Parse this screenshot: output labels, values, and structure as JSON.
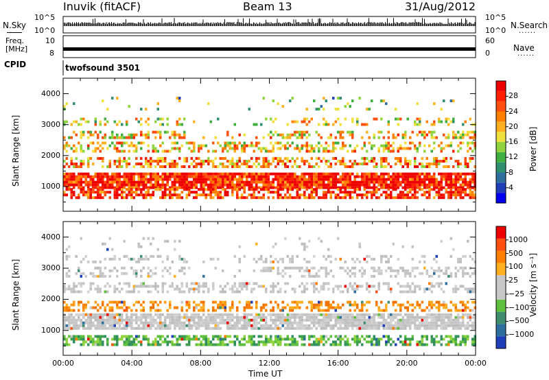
{
  "header": {
    "station": "Inuvik (fitACF)",
    "beam": "Beam 13",
    "date": "31/Aug/2012"
  },
  "top_panels": {
    "nsky_label": "N.Sky",
    "nsky_ticks": [
      "10^5",
      "10^0"
    ],
    "nsearch_label": "N.Search",
    "nsearch_ticks": [
      "10^5",
      "10^0"
    ],
    "freq_label_line1": "Freq.",
    "freq_label_line2": "[MHz]",
    "freq_ticks": [
      "10",
      "8"
    ],
    "nave_label": "Nave",
    "nave_ticks": [
      "60",
      "0"
    ],
    "cpid_label": "CPID",
    "cpid_value": "twofsound 3501",
    "dots": "......"
  },
  "chart_data": [
    {
      "type": "heatmap",
      "quantity": "Power",
      "ylabel": "Slant Range [km]",
      "xlabel": "Time UT",
      "x_ticks": [
        "00:00",
        "04:00",
        "08:00",
        "12:00",
        "16:00",
        "20:00",
        "00:00"
      ],
      "x_range_hours": [
        0,
        24
      ],
      "y_ticks": [
        1000,
        2000,
        3000,
        4000
      ],
      "ylim": [
        200,
        4500
      ],
      "colorbar": {
        "label": "Power [dB]",
        "ticks": [
          "28",
          "24",
          "20",
          "16",
          "12",
          "8",
          "4"
        ],
        "range": [
          0,
          32
        ],
        "colors": [
          "#0000ee",
          "#1f3fb8",
          "#2f6f9f",
          "#2f8f6f",
          "#3faf3f",
          "#8fd43f",
          "#f0e03f",
          "#ffb020",
          "#ff8000",
          "#ff5010",
          "#ff2000",
          "#ee0000"
        ]
      },
      "bands": [
        {
          "center_km": 1200,
          "width_km": 500,
          "level": 0.9,
          "density": 0.9
        },
        {
          "center_km": 800,
          "width_km": 300,
          "level": 0.85,
          "density": 0.6
        },
        {
          "center_km": 1800,
          "width_km": 300,
          "level": 0.7,
          "density": 0.5
        },
        {
          "center_km": 2300,
          "width_km": 300,
          "level": 0.6,
          "density": 0.4
        },
        {
          "center_km": 2700,
          "width_km": 200,
          "level": 0.6,
          "density": 0.35
        },
        {
          "center_km": 3100,
          "width_km": 250,
          "level": 0.55,
          "density": 0.25
        },
        {
          "center_km": 3700,
          "width_km": 400,
          "level": 0.4,
          "density": 0.08
        }
      ]
    },
    {
      "type": "heatmap",
      "quantity": "Velocity",
      "ylabel": "Slant Range [km]",
      "xlabel": "Time UT",
      "x_ticks": [
        "00:00",
        "04:00",
        "08:00",
        "12:00",
        "16:00",
        "20:00",
        "00:00"
      ],
      "x_range_hours": [
        0,
        24
      ],
      "y_ticks": [
        1000,
        2000,
        3000,
        4000
      ],
      "ylim": [
        200,
        4500
      ],
      "colorbar": {
        "label": "Velocity [m s⁻¹]",
        "ticks": [
          "1000",
          "500",
          "100",
          "25",
          "−25",
          "−100",
          "−500",
          "−1000"
        ],
        "colors": [
          "#1f3fb8",
          "#2f6f9f",
          "#3f8f6f",
          "#5fbf3f",
          "#c8c8c8",
          "#c8c8c8",
          "#ffb020",
          "#ff8000",
          "#ff5010",
          "#ee0000"
        ]
      },
      "bands": [
        {
          "center_km": 1300,
          "width_km": 500,
          "tone": "grey",
          "density": 0.85
        },
        {
          "center_km": 700,
          "width_km": 300,
          "tone": "green",
          "density": 0.6
        },
        {
          "center_km": 1800,
          "width_km": 300,
          "tone": "orange",
          "density": 0.45
        },
        {
          "center_km": 2400,
          "width_km": 300,
          "tone": "grey",
          "density": 0.4
        },
        {
          "center_km": 2900,
          "width_km": 300,
          "tone": "grey",
          "density": 0.35
        },
        {
          "center_km": 3300,
          "width_km": 250,
          "tone": "grey",
          "density": 0.25
        },
        {
          "center_km": 3800,
          "width_km": 400,
          "tone": "grey",
          "density": 0.06
        }
      ]
    }
  ]
}
